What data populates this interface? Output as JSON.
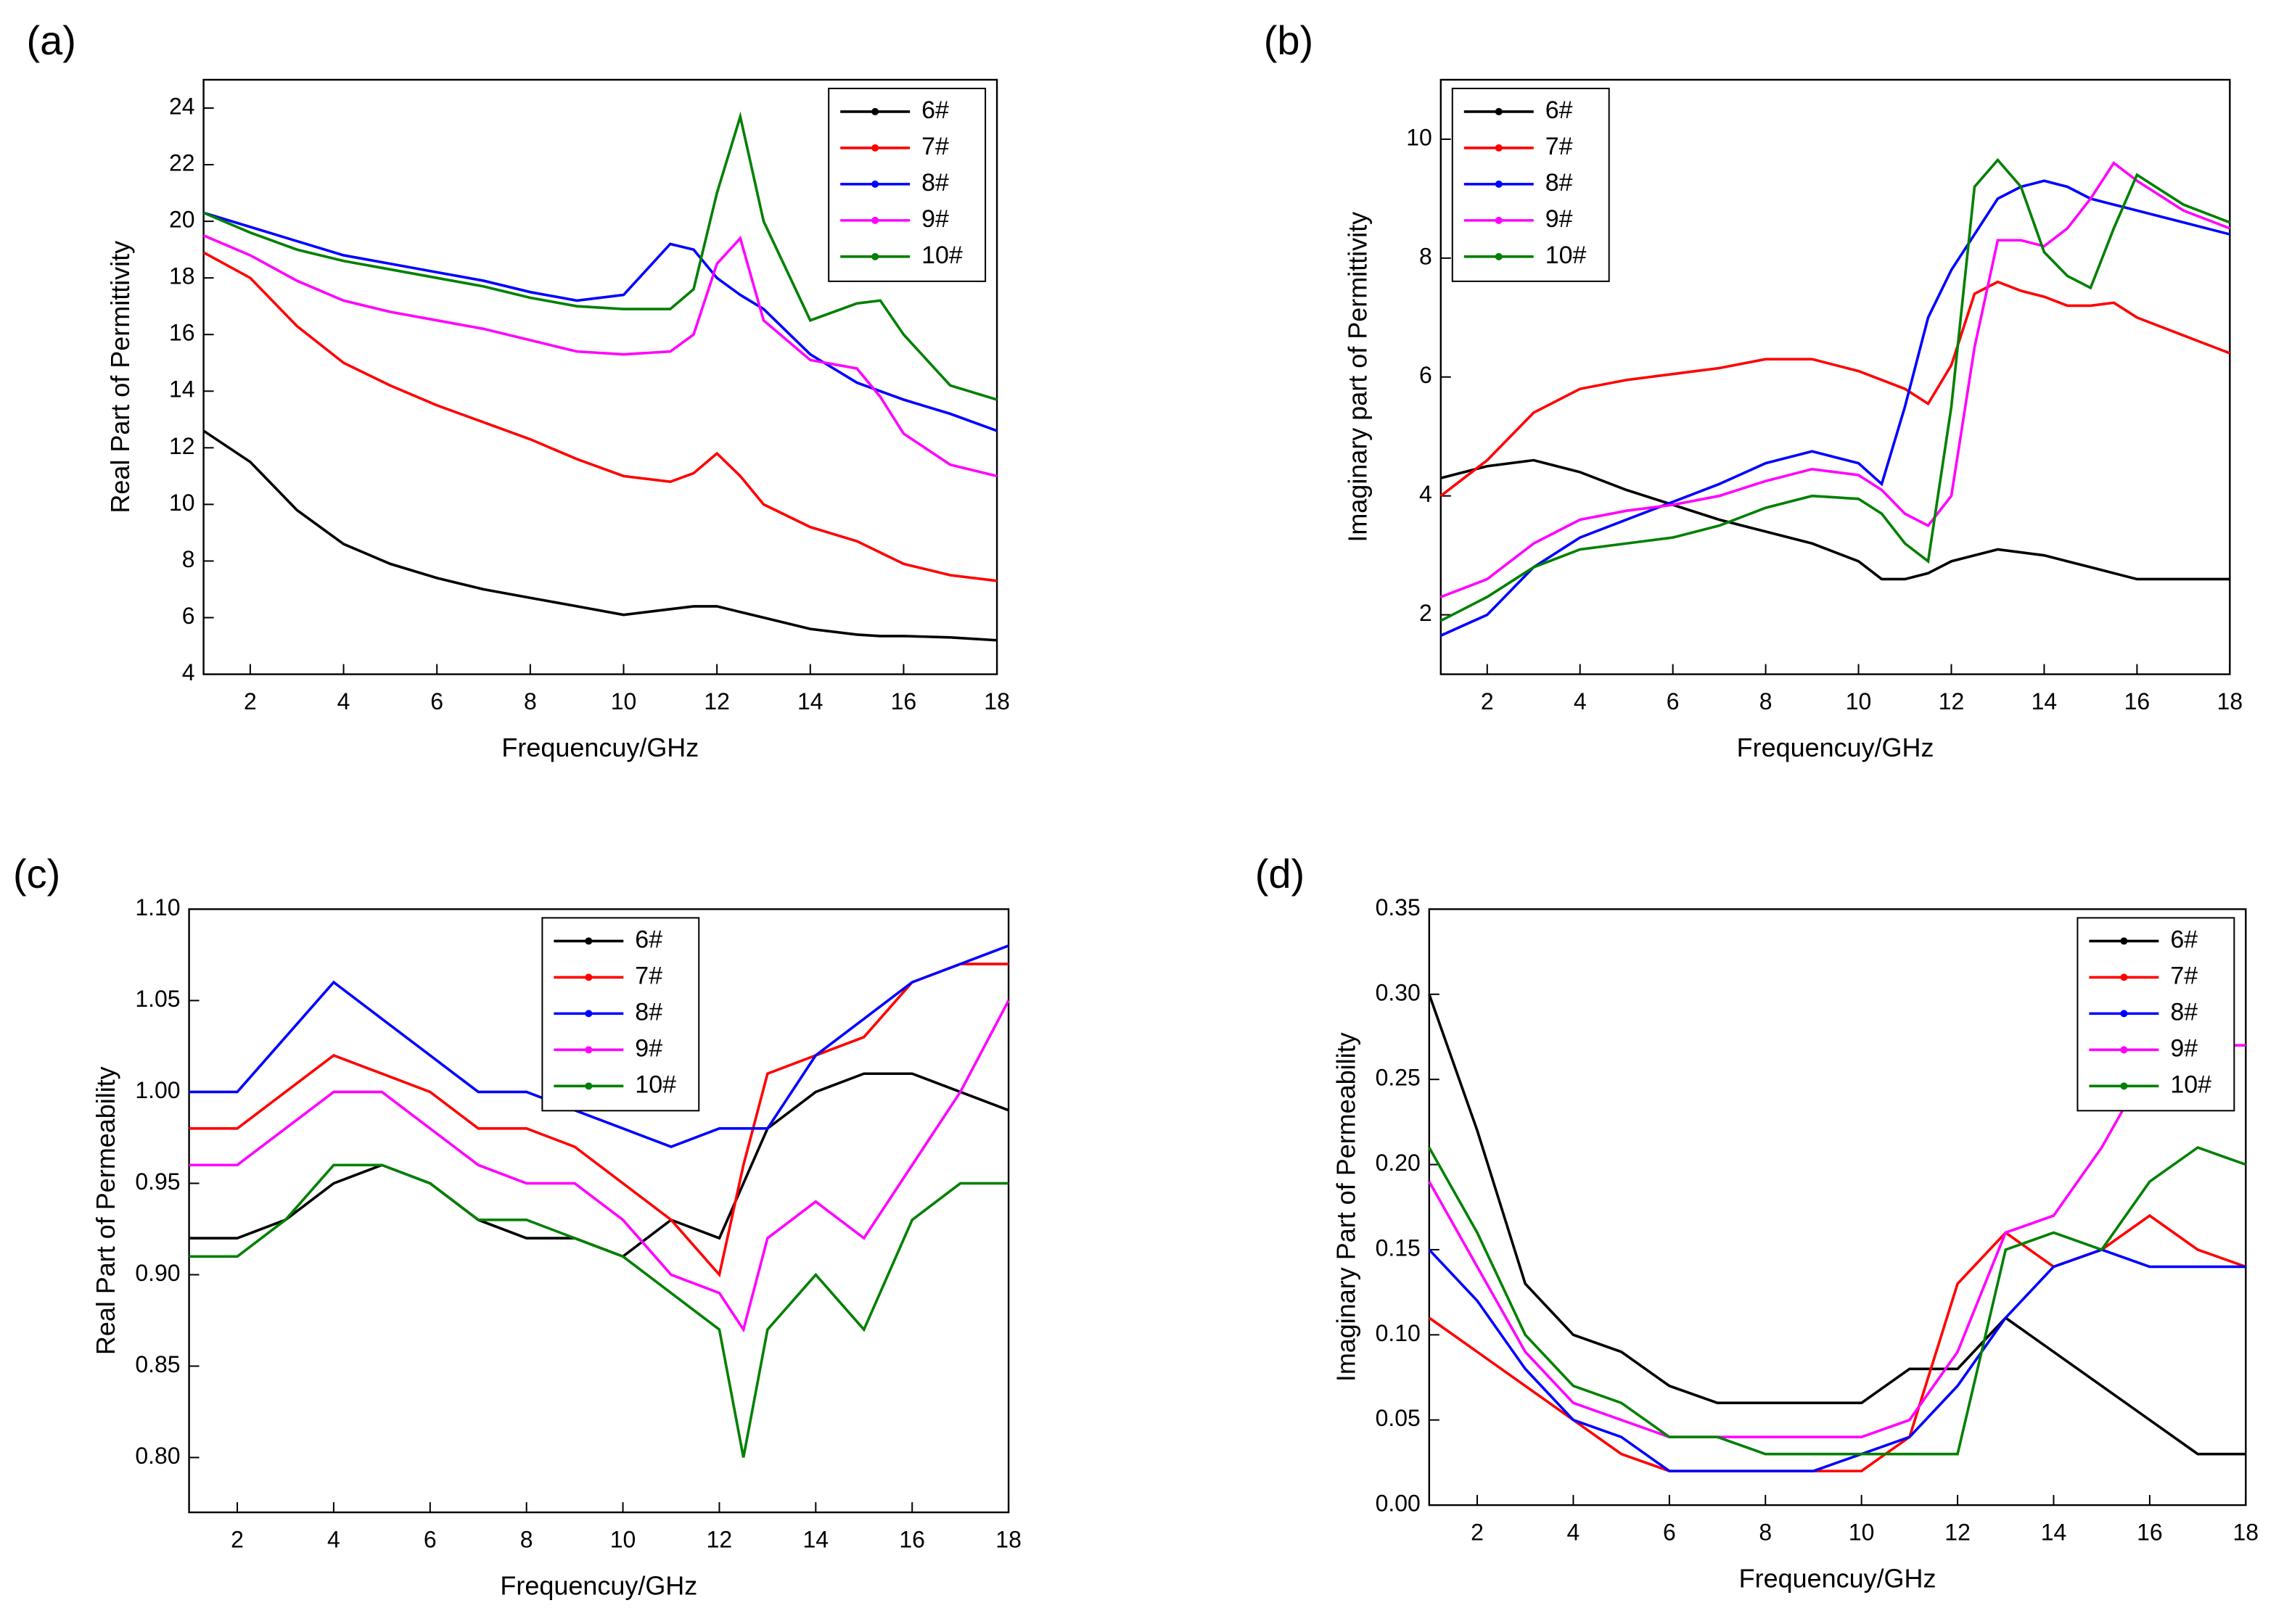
{
  "chart_data": [
    {
      "type": "line",
      "label": "(a)",
      "x_label": "Frequencuy/GHz",
      "y_label": "Real Part of  Permittivity",
      "legend": "upper right",
      "x": [
        1,
        2,
        3,
        4,
        5,
        6,
        7,
        8,
        9,
        10,
        11,
        11.5,
        12,
        12.5,
        13,
        14,
        15,
        15.5,
        16,
        17,
        18
      ],
      "xlim": [
        1,
        18
      ],
      "xticks": [
        2,
        4,
        6,
        8,
        10,
        12,
        14,
        16,
        18
      ],
      "ylim": [
        4,
        25
      ],
      "yticks": [
        4,
        6,
        8,
        10,
        12,
        14,
        16,
        18,
        20,
        22,
        24
      ],
      "series": [
        {
          "name": "6#",
          "color": "#000000",
          "values": [
            12.6,
            11.5,
            9.8,
            8.6,
            7.9,
            7.4,
            7.0,
            6.7,
            6.4,
            6.1,
            6.3,
            6.4,
            6.4,
            6.2,
            6.0,
            5.6,
            5.4,
            5.35,
            5.35,
            5.3,
            5.2
          ]
        },
        {
          "name": "7#",
          "color": "#ff0000",
          "values": [
            18.9,
            18.0,
            16.3,
            15.0,
            14.2,
            13.5,
            12.9,
            12.3,
            11.6,
            11.0,
            10.8,
            11.1,
            11.8,
            11.0,
            10.0,
            9.2,
            8.7,
            8.3,
            7.9,
            7.5,
            7.3
          ]
        },
        {
          "name": "8#",
          "color": "#0000ff",
          "values": [
            20.3,
            19.8,
            19.3,
            18.8,
            18.5,
            18.2,
            17.9,
            17.5,
            17.2,
            17.4,
            19.2,
            19.0,
            18.0,
            17.4,
            16.9,
            15.3,
            14.3,
            14.0,
            13.7,
            13.2,
            12.6
          ]
        },
        {
          "name": "9#",
          "color": "#ff00ff",
          "values": [
            19.5,
            18.8,
            17.9,
            17.2,
            16.8,
            16.5,
            16.2,
            15.8,
            15.4,
            15.3,
            15.4,
            16.0,
            18.5,
            19.4,
            16.5,
            15.1,
            14.8,
            13.8,
            12.5,
            11.4,
            11.0
          ]
        },
        {
          "name": "10#",
          "color": "#008000",
          "values": [
            20.3,
            19.6,
            19.0,
            18.6,
            18.3,
            18.0,
            17.7,
            17.3,
            17.0,
            16.9,
            16.9,
            17.6,
            21.0,
            23.7,
            20.0,
            16.5,
            17.1,
            17.2,
            16.0,
            14.2,
            13.7
          ]
        }
      ]
    },
    {
      "type": "line",
      "label": "(b)",
      "x_label": "Frequencuy/GHz",
      "y_label": "Imaginary part  of  Permittivity",
      "legend": "upper left",
      "x": [
        1,
        2,
        3,
        4,
        5,
        6,
        7,
        8,
        9,
        10,
        10.5,
        11,
        11.5,
        12,
        12.5,
        13,
        13.5,
        14,
        14.5,
        15,
        15.5,
        16,
        17,
        18
      ],
      "xlim": [
        1,
        18
      ],
      "xticks": [
        2,
        4,
        6,
        8,
        10,
        12,
        14,
        16,
        18
      ],
      "ylim": [
        1,
        11
      ],
      "yticks": [
        2,
        4,
        6,
        8,
        10
      ],
      "series": [
        {
          "name": "6#",
          "color": "#000000",
          "values": [
            4.3,
            4.5,
            4.6,
            4.4,
            4.1,
            3.85,
            3.6,
            3.4,
            3.2,
            2.9,
            2.6,
            2.6,
            2.7,
            2.9,
            3.0,
            3.1,
            3.05,
            3.0,
            2.9,
            2.8,
            2.7,
            2.6,
            2.6,
            2.6
          ]
        },
        {
          "name": "7#",
          "color": "#ff0000",
          "values": [
            4.0,
            4.6,
            5.4,
            5.8,
            5.95,
            6.05,
            6.15,
            6.3,
            6.3,
            6.1,
            5.95,
            5.8,
            5.55,
            6.2,
            7.4,
            7.6,
            7.45,
            7.35,
            7.2,
            7.2,
            7.25,
            7.0,
            6.7,
            6.4
          ]
        },
        {
          "name": "8#",
          "color": "#0000ff",
          "values": [
            1.65,
            2.0,
            2.8,
            3.3,
            3.6,
            3.9,
            4.2,
            4.55,
            4.75,
            4.55,
            4.2,
            5.5,
            7.0,
            7.8,
            8.4,
            9.0,
            9.2,
            9.3,
            9.2,
            9.0,
            8.9,
            8.8,
            8.6,
            8.4
          ]
        },
        {
          "name": "9#",
          "color": "#ff00ff",
          "values": [
            2.3,
            2.6,
            3.2,
            3.6,
            3.75,
            3.85,
            4.0,
            4.25,
            4.45,
            4.35,
            4.1,
            3.7,
            3.5,
            4.0,
            6.5,
            8.3,
            8.3,
            8.2,
            8.5,
            9.0,
            9.6,
            9.3,
            8.8,
            8.5
          ]
        },
        {
          "name": "10#",
          "color": "#008000",
          "values": [
            1.9,
            2.3,
            2.8,
            3.1,
            3.2,
            3.3,
            3.5,
            3.8,
            4.0,
            3.95,
            3.7,
            3.2,
            2.9,
            5.5,
            9.2,
            9.65,
            9.2,
            8.1,
            7.7,
            7.5,
            8.5,
            9.4,
            8.9,
            8.6
          ]
        }
      ]
    },
    {
      "type": "line",
      "label": "(c)",
      "x_label": "Frequencuy/GHz",
      "y_label": "Real Part of  Permeability",
      "legend": "upper center",
      "x": [
        1,
        2,
        3,
        4,
        5,
        6,
        7,
        8,
        9,
        10,
        11,
        12,
        12.5,
        13,
        14,
        15,
        16,
        17,
        18
      ],
      "xlim": [
        1,
        18
      ],
      "xticks": [
        2,
        4,
        6,
        8,
        10,
        12,
        14,
        16,
        18
      ],
      "ylim": [
        0.77,
        1.1
      ],
      "yticks": [
        {
          "value": 0.8,
          "label": "0.80"
        },
        0.85,
        {
          "value": 0.9,
          "label": "0.90"
        },
        0.95,
        {
          "value": 1.0,
          "label": "1.00"
        },
        1.05,
        {
          "value": 1.1,
          "label": "1.10"
        }
      ],
      "series": [
        {
          "name": "6#",
          "color": "#000000",
          "values": [
            0.92,
            0.92,
            0.93,
            0.95,
            0.96,
            0.95,
            0.93,
            0.92,
            0.92,
            0.91,
            0.93,
            0.92,
            0.95,
            0.98,
            1.0,
            1.01,
            1.01,
            1.0,
            0.99
          ]
        },
        {
          "name": "7#",
          "color": "#ff0000",
          "values": [
            0.98,
            0.98,
            1.0,
            1.02,
            1.01,
            1.0,
            0.98,
            0.98,
            0.97,
            0.95,
            0.93,
            0.9,
            0.96,
            1.01,
            1.02,
            1.03,
            1.06,
            1.07,
            1.07
          ]
        },
        {
          "name": "8#",
          "color": "#0000ff",
          "values": [
            1.0,
            1.0,
            1.03,
            1.06,
            1.04,
            1.02,
            1.0,
            1.0,
            0.99,
            0.98,
            0.97,
            0.98,
            0.98,
            0.98,
            1.02,
            1.04,
            1.06,
            1.07,
            1.08
          ]
        },
        {
          "name": "9#",
          "color": "#ff00ff",
          "values": [
            0.96,
            0.96,
            0.98,
            1.0,
            1.0,
            0.98,
            0.96,
            0.95,
            0.95,
            0.93,
            0.9,
            0.89,
            0.87,
            0.92,
            0.94,
            0.92,
            0.96,
            1.0,
            1.05
          ]
        },
        {
          "name": "10#",
          "color": "#008000",
          "values": [
            0.91,
            0.91,
            0.93,
            0.96,
            0.96,
            0.95,
            0.93,
            0.93,
            0.92,
            0.91,
            0.89,
            0.87,
            0.8,
            0.87,
            0.9,
            0.87,
            0.93,
            0.95,
            0.95
          ]
        }
      ]
    },
    {
      "type": "line",
      "label": "(d)",
      "x_label": "Frequencuy/GHz",
      "y_label": "Imaginary Part of Permeability",
      "legend": "upper right",
      "x": [
        1,
        2,
        3,
        4,
        5,
        6,
        7,
        8,
        9,
        10,
        11,
        12,
        13,
        14,
        15,
        16,
        17,
        18
      ],
      "xlim": [
        1,
        18
      ],
      "xticks": [
        2,
        4,
        6,
        8,
        10,
        12,
        14,
        16,
        18
      ],
      "ylim": [
        0,
        0.35
      ],
      "yticks": [
        {
          "value": 0,
          "label": "0.00"
        },
        0.05,
        {
          "value": 0.1,
          "label": "0.10"
        },
        0.15,
        {
          "value": 0.2,
          "label": "0.20"
        },
        0.25,
        {
          "value": 0.3,
          "label": "0.30"
        },
        0.35
      ],
      "series": [
        {
          "name": "6#",
          "color": "#000000",
          "values": [
            0.3,
            0.22,
            0.13,
            0.1,
            0.09,
            0.07,
            0.06,
            0.06,
            0.06,
            0.06,
            0.08,
            0.08,
            0.11,
            0.09,
            0.07,
            0.05,
            0.03,
            0.03
          ]
        },
        {
          "name": "7#",
          "color": "#ff0000",
          "values": [
            0.11,
            0.09,
            0.07,
            0.05,
            0.03,
            0.02,
            0.02,
            0.02,
            0.02,
            0.02,
            0.04,
            0.13,
            0.16,
            0.14,
            0.15,
            0.17,
            0.15,
            0.14
          ]
        },
        {
          "name": "8#",
          "color": "#0000ff",
          "values": [
            0.15,
            0.12,
            0.08,
            0.05,
            0.04,
            0.02,
            0.02,
            0.02,
            0.02,
            0.03,
            0.04,
            0.07,
            0.11,
            0.14,
            0.15,
            0.14,
            0.14,
            0.14
          ]
        },
        {
          "name": "9#",
          "color": "#ff00ff",
          "values": [
            0.19,
            0.14,
            0.09,
            0.06,
            0.05,
            0.04,
            0.04,
            0.04,
            0.04,
            0.04,
            0.05,
            0.09,
            0.16,
            0.17,
            0.21,
            0.26,
            0.27,
            0.27
          ]
        },
        {
          "name": "10#",
          "color": "#008000",
          "values": [
            0.21,
            0.16,
            0.1,
            0.07,
            0.06,
            0.04,
            0.04,
            0.03,
            0.03,
            0.03,
            0.03,
            0.03,
            0.15,
            0.16,
            0.15,
            0.19,
            0.21,
            0.2
          ]
        }
      ]
    }
  ]
}
